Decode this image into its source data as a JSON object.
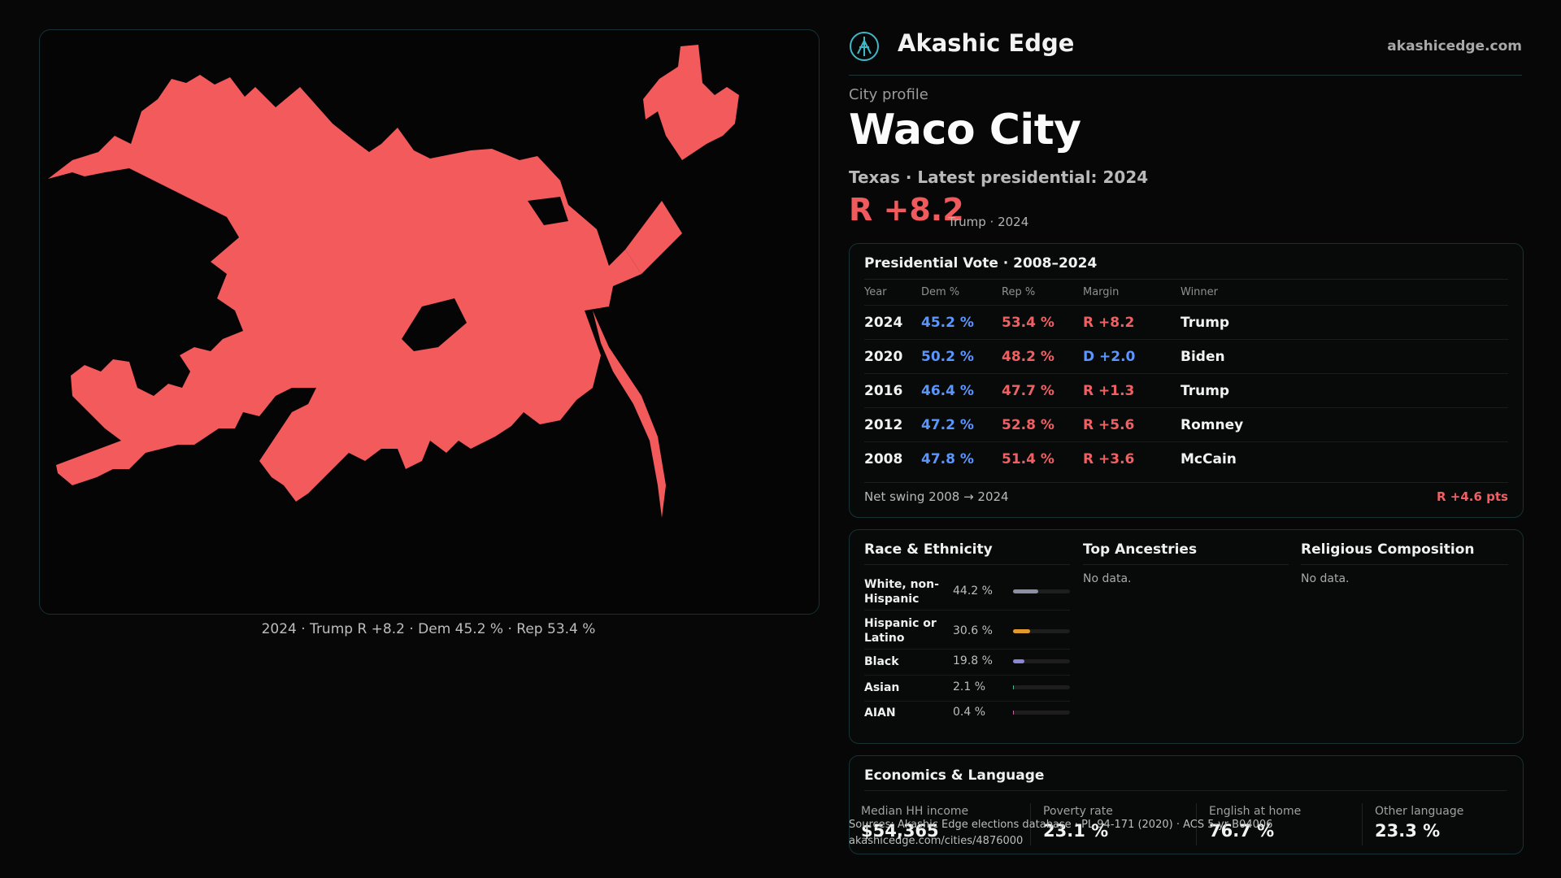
{
  "header": {
    "brand": "Akashic Edge",
    "site": "akashicedge.com"
  },
  "profile": {
    "kicker": "City profile",
    "city": "Waco City",
    "subline": "Texas · Latest presidential: 2024",
    "margin": "R +8.2",
    "margin_note": "Trump · 2024"
  },
  "map": {
    "caption": "2024 · Trump R +8.2 · Dem 45.2 % · Rep 53.4 %",
    "fill_color": "#f25a5b"
  },
  "presidential": {
    "title": "Presidential Vote · 2008–2024",
    "columns": [
      "Year",
      "Dem %",
      "Rep %",
      "Margin",
      "Winner"
    ],
    "rows": [
      {
        "year": "2024",
        "dem": "45.2 %",
        "rep": "53.4 %",
        "margin": "R +8.2",
        "party": "R",
        "winner": "Trump"
      },
      {
        "year": "2020",
        "dem": "50.2 %",
        "rep": "48.2 %",
        "margin": "D +2.0",
        "party": "D",
        "winner": "Biden"
      },
      {
        "year": "2016",
        "dem": "46.4 %",
        "rep": "47.7 %",
        "margin": "R +1.3",
        "party": "R",
        "winner": "Trump"
      },
      {
        "year": "2012",
        "dem": "47.2 %",
        "rep": "52.8 %",
        "margin": "R +5.6",
        "party": "R",
        "winner": "Romney"
      },
      {
        "year": "2008",
        "dem": "47.8 %",
        "rep": "51.4 %",
        "margin": "R +3.6",
        "party": "R",
        "winner": "McCain"
      }
    ],
    "swing_label": "Net swing 2008 → 2024",
    "swing_value": "R +4.6 pts"
  },
  "race": {
    "title": "Race & Ethnicity",
    "rows": [
      {
        "name": "White, non-Hispanic",
        "pct": "44.2 %",
        "value": 44.2,
        "color": "#8c8fa3"
      },
      {
        "name": "Hispanic or Latino",
        "pct": "30.6 %",
        "value": 30.6,
        "color": "#e09a2c"
      },
      {
        "name": "Black",
        "pct": "19.8 %",
        "value": 19.8,
        "color": "#8b86d6"
      },
      {
        "name": "Asian",
        "pct": "2.1 %",
        "value": 2.1,
        "color": "#3fbf8a"
      },
      {
        "name": "AIAN",
        "pct": "0.4 %",
        "value": 0.4,
        "color": "#c06a9a"
      }
    ]
  },
  "ancestries": {
    "title": "Top Ancestries",
    "empty": "No data."
  },
  "religion": {
    "title": "Religious Composition",
    "empty": "No data."
  },
  "economics": {
    "title": "Economics & Language",
    "items": [
      {
        "label": "Median HH income",
        "value": "$54,365"
      },
      {
        "label": "Poverty rate",
        "value": "23.1 %"
      },
      {
        "label": "English at home",
        "value": "76.7 %"
      },
      {
        "label": "Other language",
        "value": "23.3 %"
      }
    ]
  },
  "footer": {
    "source": "Sources: Akashic Edge elections database · PL 94-171 (2020) · ACS 5-yr B04006",
    "url": "akashicedge.com/cities/4876000"
  },
  "colors": {
    "dem": "#5b96ff",
    "rep": "#f06062",
    "accent": "#3fb8c6"
  }
}
